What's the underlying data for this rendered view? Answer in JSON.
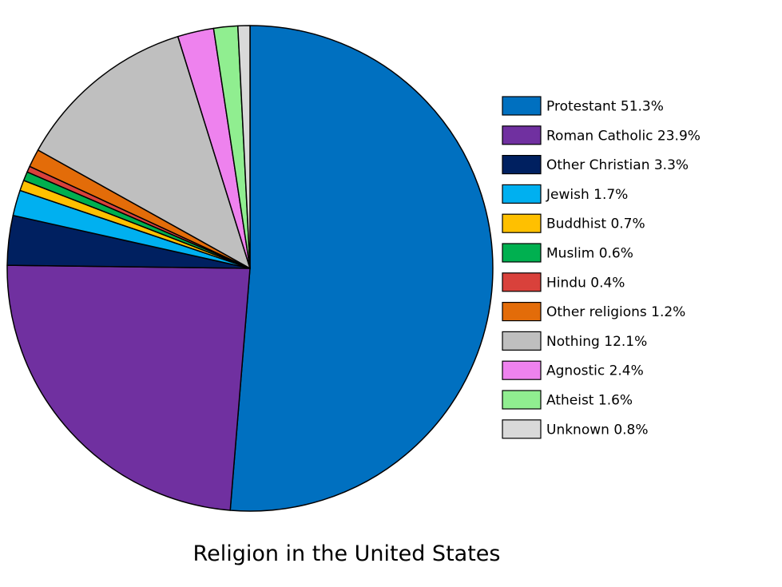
{
  "chart_data": {
    "type": "pie",
    "title": "Religion in the United States",
    "slices": [
      {
        "label": "Protestant",
        "value": 51.3,
        "legend": "Protestant 51.3%",
        "color": "#0070C0"
      },
      {
        "label": "Roman Catholic",
        "value": 23.9,
        "legend": "Roman Catholic 23.9%",
        "color": "#7030A0"
      },
      {
        "label": "Other Christian",
        "value": 3.3,
        "legend": "Other Christian 3.3%",
        "color": "#002060"
      },
      {
        "label": "Jewish",
        "value": 1.7,
        "legend": "Jewish 1.7%",
        "color": "#00B0F0"
      },
      {
        "label": "Buddhist",
        "value": 0.7,
        "legend": "Buddhist 0.7%",
        "color": "#FFC000"
      },
      {
        "label": "Muslim",
        "value": 0.6,
        "legend": "Muslim 0.6%",
        "color": "#00B050"
      },
      {
        "label": "Hindu",
        "value": 0.4,
        "legend": "Hindu 0.4%",
        "color": "#D9413B"
      },
      {
        "label": "Other religions",
        "value": 1.2,
        "legend": "Other religions 1.2%",
        "color": "#E36C09"
      },
      {
        "label": "Nothing",
        "value": 12.1,
        "legend": "Nothing 12.1%",
        "color": "#BFBFBF"
      },
      {
        "label": "Agnostic",
        "value": 2.4,
        "legend": "Agnostic 2.4%",
        "color": "#EE82EE"
      },
      {
        "label": "Atheist",
        "value": 1.6,
        "legend": "Atheist 1.6%",
        "color": "#90EE90"
      },
      {
        "label": "Unknown",
        "value": 0.8,
        "legend": "Unknown 0.8%",
        "color": "#D9D9D9"
      }
    ],
    "direction": "clockwise",
    "start": "top",
    "legend_position": "right",
    "slice_border_color": "#000000"
  }
}
